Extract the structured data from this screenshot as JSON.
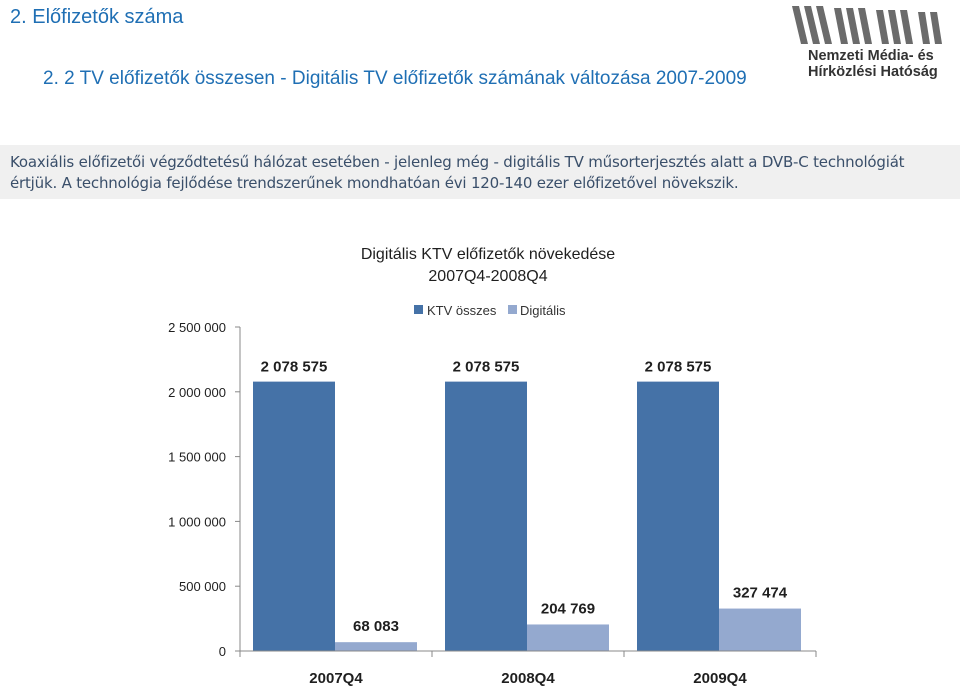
{
  "page": {
    "section_title": "2. Előfizetők száma",
    "subtitle": "2. 2 TV előfizetők összesen - Digitális TV előfizetők számának változása 2007-2009",
    "description": "Koaxiális előfizetői végződtetésű hálózat esetében - jelenleg még - digitális TV műsorterjesztés alatt a DVB-C technológiát értjük. A technológia fejlődése trendszerűnek mondhatóan évi 120-140 ezer előfizetővel növekszik.",
    "logo": {
      "line1": "Nemzeti Média- és",
      "line2": "Hírközlési Hatóság",
      "icon": "nmhh-logo"
    }
  },
  "colors": {
    "heading": "#1f6fb4",
    "series_ktv": "#4572a7",
    "series_digital": "#94a9cf",
    "description_bg": "#f0f0f0",
    "description_text": "#3a4f6a"
  },
  "chart_data": {
    "type": "bar",
    "title_lines": [
      "Digitális KTV előfizetők növekedése",
      "2007Q4-2008Q4"
    ],
    "categories": [
      "2007Q4",
      "2008Q4",
      "2009Q4"
    ],
    "series": [
      {
        "name": "KTV összes",
        "values": [
          2078575,
          2078575,
          2078575
        ],
        "labels": [
          "2 078 575",
          "2 078 575",
          "2 078 575"
        ]
      },
      {
        "name": "Digitális",
        "values": [
          68083,
          204769,
          327474
        ],
        "labels": [
          "68 083",
          "204 769",
          "327 474"
        ]
      }
    ],
    "y_ticks": [
      0,
      500000,
      1000000,
      1500000,
      2000000,
      2500000
    ],
    "y_tick_labels": [
      "0",
      "500 000",
      "1 000 000",
      "1 500 000",
      "2 000 000",
      "2 500 000"
    ],
    "ylim": [
      0,
      2500000
    ],
    "grid": false,
    "legend_position": "top"
  }
}
